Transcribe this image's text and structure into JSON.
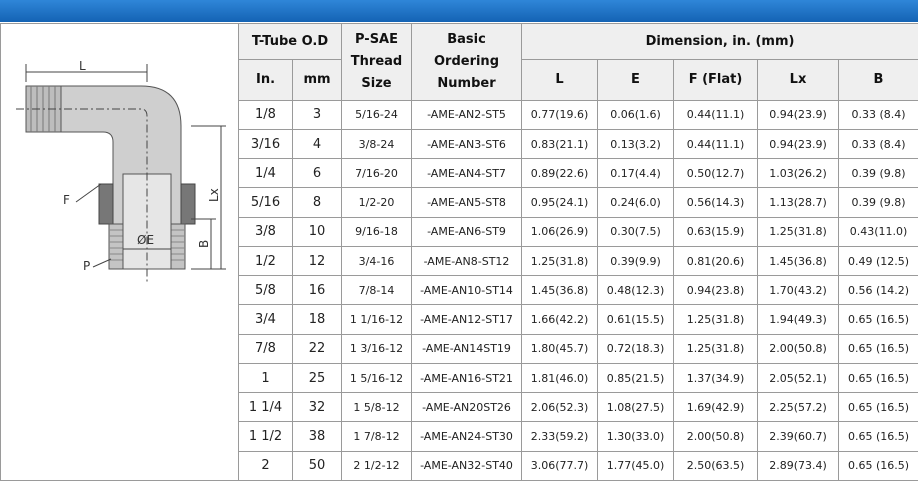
{
  "diagram": {
    "labels": [
      "L",
      "F",
      "P",
      "ØE",
      "Lx",
      "B"
    ]
  },
  "table": {
    "headers": {
      "tube": "T-Tube O.D",
      "in": "In.",
      "mm": "mm",
      "thread": [
        "P-SAE",
        "Thread",
        "Size"
      ],
      "ordering": [
        "Basic",
        "Ordering",
        "Number"
      ],
      "dimension": "Dimension, in. (mm)",
      "dims": [
        "L",
        "E",
        "F (Flat)",
        "Lx",
        "B"
      ]
    },
    "rows": [
      [
        "1/8",
        "3",
        "5/16-24",
        "-AME-AN2-ST5",
        "0.77(19.6)",
        "0.06(1.6)",
        "0.44(11.1)",
        "0.94(23.9)",
        "0.33 (8.4)"
      ],
      [
        "3/16",
        "4",
        "3/8-24",
        "-AME-AN3-ST6",
        "0.83(21.1)",
        "0.13(3.2)",
        "0.44(11.1)",
        "0.94(23.9)",
        "0.33 (8.4)"
      ],
      [
        "1/4",
        "6",
        "7/16-20",
        "-AME-AN4-ST7",
        "0.89(22.6)",
        "0.17(4.4)",
        "0.50(12.7)",
        "1.03(26.2)",
        "0.39 (9.8)"
      ],
      [
        "5/16",
        "8",
        "1/2-20",
        "-AME-AN5-ST8",
        "0.95(24.1)",
        "0.24(6.0)",
        "0.56(14.3)",
        "1.13(28.7)",
        "0.39 (9.8)"
      ],
      [
        "3/8",
        "10",
        "9/16-18",
        "-AME-AN6-ST9",
        "1.06(26.9)",
        "0.30(7.5)",
        "0.63(15.9)",
        "1.25(31.8)",
        "0.43(11.0)"
      ],
      [
        "1/2",
        "12",
        "3/4-16",
        "-AME-AN8-ST12",
        "1.25(31.8)",
        "0.39(9.9)",
        "0.81(20.6)",
        "1.45(36.8)",
        "0.49 (12.5)"
      ],
      [
        "5/8",
        "16",
        "7/8-14",
        "-AME-AN10-ST14",
        "1.45(36.8)",
        "0.48(12.3)",
        "0.94(23.8)",
        "1.70(43.2)",
        "0.56 (14.2)"
      ],
      [
        "3/4",
        "18",
        "1 1/16-12",
        "-AME-AN12-ST17",
        "1.66(42.2)",
        "0.61(15.5)",
        "1.25(31.8)",
        "1.94(49.3)",
        "0.65 (16.5)"
      ],
      [
        "7/8",
        "22",
        "1 3/16-12",
        "-AME-AN14ST19",
        "1.80(45.7)",
        "0.72(18.3)",
        "1.25(31.8)",
        "2.00(50.8)",
        "0.65 (16.5)"
      ],
      [
        "1",
        "25",
        "1 5/16-12",
        "-AME-AN16-ST21",
        "1.81(46.0)",
        "0.85(21.5)",
        "1.37(34.9)",
        "2.05(52.1)",
        "0.65 (16.5)"
      ],
      [
        "1 1/4",
        "32",
        "1 5/8-12",
        "-AME-AN20ST26",
        "2.06(52.3)",
        "1.08(27.5)",
        "1.69(42.9)",
        "2.25(57.2)",
        "0.65 (16.5)"
      ],
      [
        "1 1/2",
        "38",
        "1 7/8-12",
        "-AME-AN24-ST30",
        "2.33(59.2)",
        "1.30(33.0)",
        "2.00(50.8)",
        "2.39(60.7)",
        "0.65 (16.5)"
      ],
      [
        "2",
        "50",
        "2 1/2-12",
        "-AME-AN32-ST40",
        "3.06(77.7)",
        "1.77(45.0)",
        "2.50(63.5)",
        "2.89(73.4)",
        "0.65 (16.5)"
      ]
    ]
  }
}
